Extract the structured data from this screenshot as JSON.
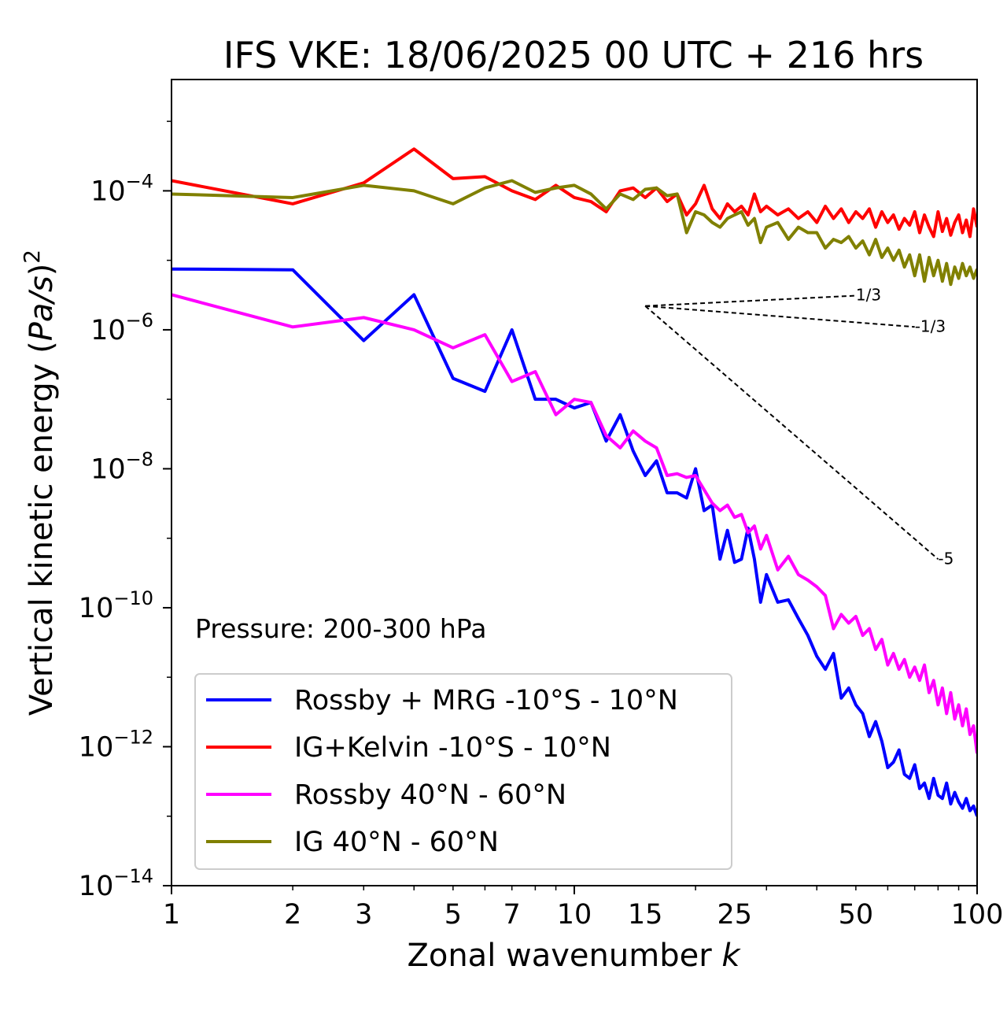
{
  "chart_data": {
    "type": "line",
    "title": "IFS VKE: 18/06/2025 00 UTC + 216 hrs",
    "xlabel": "Zonal wavenumber k",
    "ylabel": "Vertical kinetic energy (Pa/s)^2",
    "x_scale": "log",
    "y_scale": "log",
    "xlim": [
      1,
      100
    ],
    "ylim": [
      1e-14,
      0.004
    ],
    "x_ticks": [
      1,
      2,
      3,
      5,
      7,
      10,
      15,
      25,
      50,
      100
    ],
    "y_ticks": [
      {
        "value": 1e-14,
        "base": "10",
        "exp": "−14"
      },
      {
        "value": 1e-12,
        "base": "10",
        "exp": "−12"
      },
      {
        "value": 1e-10,
        "base": "10",
        "exp": "−10"
      },
      {
        "value": 1e-08,
        "base": "10",
        "exp": "−8"
      },
      {
        "value": 1e-06,
        "base": "10",
        "exp": "−6"
      },
      {
        "value": 0.0001,
        "base": "10",
        "exp": "−4"
      }
    ],
    "annotation": "Pressure: 200-300 hPa",
    "legend_position": "lower-left",
    "series": [
      {
        "name": "Rossby + MRG -10°S - 10°N",
        "color": "#0000ff",
        "x": [
          1,
          2,
          3,
          4,
          5,
          6,
          7,
          8,
          9,
          10,
          11,
          12,
          13,
          14,
          15,
          16,
          17,
          18,
          19,
          20,
          21,
          22,
          23,
          24,
          25,
          26,
          27,
          28,
          29,
          30,
          32,
          34,
          36,
          38,
          40,
          42,
          44,
          46,
          48,
          50,
          52,
          54,
          56,
          58,
          60,
          62,
          64,
          66,
          68,
          70,
          72,
          74,
          76,
          78,
          80,
          82,
          84,
          86,
          88,
          90,
          92,
          94,
          96,
          98,
          100
        ],
        "values": [
          7.5e-06,
          7.3e-06,
          7e-07,
          3.2e-06,
          2e-07,
          1.3e-07,
          1e-06,
          1e-07,
          1e-07,
          7.5e-08,
          9e-08,
          2.5e-08,
          6e-08,
          1.8e-08,
          8e-09,
          1.3e-08,
          4.5e-09,
          4.5e-09,
          3.8e-09,
          1e-08,
          2.5e-09,
          3e-09,
          5e-10,
          1.3e-09,
          4.5e-10,
          5e-10,
          1.4e-09,
          5e-10,
          1.2e-10,
          3e-10,
          1.2e-10,
          1.3e-10,
          7e-11,
          4e-11,
          2e-11,
          1.3e-11,
          2.2e-11,
          5e-12,
          7e-12,
          4e-12,
          3e-12,
          1.4e-12,
          2.3e-12,
          1.2e-12,
          5e-13,
          6e-13,
          9e-13,
          4e-13,
          3.5e-13,
          5.5e-13,
          2.5e-13,
          3e-13,
          1.8e-13,
          3.5e-13,
          2e-13,
          1.8e-13,
          3e-13,
          1.5e-13,
          2.2e-13,
          1.6e-13,
          1.3e-13,
          1.8e-13,
          1.2e-13,
          1.4e-13,
          1e-13
        ]
      },
      {
        "name": "IG+Kelvin -10°S - 10°N",
        "color": "#ff0000",
        "x": [
          1,
          2,
          3,
          4,
          5,
          6,
          7,
          8,
          9,
          10,
          11,
          12,
          13,
          14,
          15,
          16,
          17,
          18,
          19,
          20,
          21,
          22,
          23,
          24,
          25,
          26,
          27,
          28,
          29,
          30,
          32,
          34,
          36,
          38,
          40,
          42,
          44,
          46,
          48,
          50,
          52,
          54,
          56,
          58,
          60,
          62,
          64,
          66,
          68,
          70,
          72,
          74,
          76,
          78,
          80,
          82,
          84,
          86,
          88,
          90,
          92,
          94,
          96,
          98,
          100
        ],
        "values": [
          0.00014,
          6.5e-05,
          0.00013,
          0.0004,
          0.00015,
          0.00016,
          0.0001,
          7.5e-05,
          0.00012,
          8e-05,
          7e-05,
          5e-05,
          0.0001,
          0.00011,
          8e-05,
          0.00011,
          7e-05,
          9e-05,
          4.5e-05,
          6.5e-05,
          0.00012,
          5.5e-05,
          4e-05,
          6.5e-05,
          5e-05,
          6e-05,
          4.5e-05,
          9e-05,
          5e-05,
          6e-05,
          4.5e-05,
          5.5e-05,
          4e-05,
          5e-05,
          3.5e-05,
          6e-05,
          4e-05,
          5.5e-05,
          3.5e-05,
          5e-05,
          4e-05,
          5.5e-05,
          3e-05,
          5e-05,
          3.5e-05,
          4.5e-05,
          2.8e-05,
          4e-05,
          3.2e-05,
          5e-05,
          2.5e-05,
          4.5e-05,
          3e-05,
          2.2e-05,
          5e-05,
          2.6e-05,
          4e-05,
          2.3e-05,
          3.5e-05,
          4.5e-05,
          2.5e-05,
          3.8e-05,
          2.2e-05,
          5.5e-05,
          3e-05
        ]
      },
      {
        "name": "Rossby 40°N - 60°N",
        "color": "#ff00ff",
        "x": [
          1,
          2,
          3,
          4,
          5,
          6,
          7,
          8,
          9,
          10,
          11,
          12,
          13,
          14,
          15,
          16,
          17,
          18,
          19,
          20,
          21,
          22,
          23,
          24,
          25,
          26,
          27,
          28,
          29,
          30,
          32,
          34,
          36,
          38,
          40,
          42,
          44,
          46,
          48,
          50,
          52,
          54,
          56,
          58,
          60,
          62,
          64,
          66,
          68,
          70,
          72,
          74,
          76,
          78,
          80,
          82,
          84,
          86,
          88,
          90,
          92,
          94,
          96,
          98,
          100
        ],
        "values": [
          3.2e-06,
          1.1e-06,
          1.5e-06,
          1e-06,
          5.5e-07,
          8.5e-07,
          1.8e-07,
          2.5e-07,
          6e-08,
          1e-07,
          9e-08,
          3e-08,
          2e-08,
          3.5e-08,
          2.5e-08,
          2e-08,
          8e-09,
          8.5e-09,
          7.5e-09,
          8e-09,
          5e-09,
          3.2e-09,
          2.5e-09,
          3e-09,
          2e-09,
          2.2e-09,
          1.2e-09,
          1.5e-09,
          7e-10,
          1.1e-09,
          3.5e-10,
          5.5e-10,
          3e-10,
          2.5e-10,
          2e-10,
          1.5e-10,
          5e-11,
          8e-11,
          6e-11,
          7.5e-11,
          4e-11,
          5e-11,
          2.5e-11,
          3.5e-11,
          1.5e-11,
          2.2e-11,
          1.3e-11,
          1.8e-11,
          1e-11,
          1.4e-11,
          9e-12,
          1.5e-11,
          6e-12,
          9e-12,
          4e-12,
          7e-12,
          3e-12,
          6e-12,
          2.5e-12,
          4e-12,
          2e-12,
          3.5e-12,
          1.5e-12,
          2e-12,
          8e-13
        ]
      },
      {
        "name": "IG 40°N - 60°N",
        "color": "#808000",
        "x": [
          1,
          2,
          3,
          4,
          5,
          6,
          7,
          8,
          9,
          10,
          11,
          12,
          13,
          14,
          15,
          16,
          17,
          18,
          19,
          20,
          21,
          22,
          23,
          24,
          25,
          26,
          27,
          28,
          29,
          30,
          32,
          34,
          36,
          38,
          40,
          42,
          44,
          46,
          48,
          50,
          52,
          54,
          56,
          58,
          60,
          62,
          64,
          66,
          68,
          70,
          72,
          74,
          76,
          78,
          80,
          82,
          84,
          86,
          88,
          90,
          92,
          94,
          96,
          98,
          100
        ],
        "values": [
          9e-05,
          8e-05,
          0.00012,
          0.0001,
          6.5e-05,
          0.00011,
          0.00014,
          9.5e-05,
          0.00011,
          0.00012,
          9e-05,
          5.5e-05,
          9e-05,
          7.5e-05,
          0.000105,
          0.00011,
          8.5e-05,
          9e-05,
          2.5e-05,
          5e-05,
          4.5e-05,
          3.5e-05,
          3e-05,
          4e-05,
          4.5e-05,
          5e-05,
          3.2e-05,
          4e-05,
          1.8e-05,
          3e-05,
          3.5e-05,
          2e-05,
          3e-05,
          2.5e-05,
          2.5e-05,
          1.5e-05,
          2e-05,
          1.8e-05,
          2.2e-05,
          1.5e-05,
          1.9e-05,
          1.2e-05,
          2e-05,
          1.1e-05,
          1.5e-05,
          1e-05,
          1.4e-05,
          8e-06,
          1.2e-05,
          6e-06,
          1.2e-05,
          5e-06,
          1.1e-05,
          6e-06,
          1e-05,
          5e-06,
          9e-06,
          4.5e-06,
          8e-06,
          5.5e-06,
          9e-06,
          6e-06,
          8e-06,
          5.5e-06,
          7.5e-06
        ]
      }
    ],
    "reference_lines": [
      {
        "label": "1/3",
        "x0": 15,
        "y0": 2.2e-06,
        "x1": 50,
        "y1": 3.1e-06
      },
      {
        "label": "-1/3",
        "x0": 15,
        "y0": 2.2e-06,
        "x1": 70,
        "y1": 1.1e-06
      },
      {
        "label": "-5",
        "x0": 15,
        "y0": 2.2e-06,
        "x1": 80,
        "y1": 5e-10
      }
    ]
  }
}
